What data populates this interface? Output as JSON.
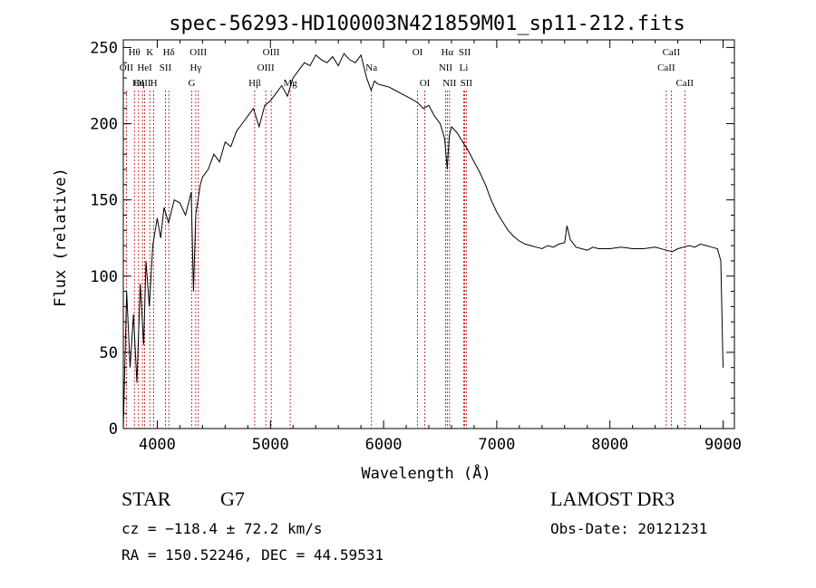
{
  "chart_data": {
    "type": "line",
    "title": "spec-56293-HD100003N421859M01_sp11-212.fits",
    "xlabel": "Wavelength (Å)",
    "ylabel": "Flux (relative)",
    "xlim": [
      3700,
      9100
    ],
    "ylim": [
      0,
      255
    ],
    "xticks": [
      4000,
      5000,
      6000,
      7000,
      8000,
      9000
    ],
    "yticks": [
      0,
      50,
      100,
      150,
      200,
      250
    ],
    "series": [
      {
        "name": "flux",
        "x": [
          3700,
          3730,
          3760,
          3790,
          3820,
          3850,
          3880,
          3900,
          3930,
          3960,
          4000,
          4030,
          4060,
          4100,
          4150,
          4200,
          4250,
          4300,
          4320,
          4340,
          4380,
          4400,
          4450,
          4500,
          4550,
          4600,
          4650,
          4700,
          4750,
          4800,
          4850,
          4900,
          4950,
          5000,
          5050,
          5100,
          5150,
          5200,
          5250,
          5300,
          5350,
          5400,
          5450,
          5500,
          5550,
          5600,
          5650,
          5700,
          5750,
          5800,
          5850,
          5890,
          5920,
          5950,
          6000,
          6050,
          6100,
          6150,
          6200,
          6250,
          6300,
          6350,
          6400,
          6450,
          6500,
          6540,
          6563,
          6580,
          6600,
          6650,
          6700,
          6750,
          6800,
          6850,
          6900,
          6950,
          7000,
          7050,
          7100,
          7150,
          7200,
          7250,
          7300,
          7350,
          7400,
          7450,
          7500,
          7550,
          7600,
          7620,
          7650,
          7700,
          7750,
          7800,
          7850,
          7900,
          7950,
          8000,
          8100,
          8200,
          8300,
          8400,
          8500,
          8550,
          8600,
          8650,
          8700,
          8750,
          8800,
          8850,
          8900,
          8950,
          8980,
          9000
        ],
        "values": [
          0,
          90,
          40,
          75,
          30,
          95,
          55,
          110,
          80,
          120,
          138,
          125,
          145,
          135,
          150,
          148,
          140,
          155,
          90,
          140,
          160,
          165,
          170,
          180,
          175,
          188,
          185,
          195,
          200,
          205,
          210,
          198,
          212,
          215,
          220,
          225,
          218,
          230,
          235,
          240,
          238,
          245,
          242,
          240,
          244,
          238,
          246,
          242,
          240,
          245,
          230,
          222,
          228,
          226,
          225,
          224,
          222,
          220,
          218,
          216,
          214,
          210,
          212,
          205,
          200,
          190,
          170,
          192,
          198,
          194,
          188,
          182,
          175,
          168,
          160,
          150,
          142,
          136,
          130,
          126,
          123,
          121,
          120,
          119,
          118,
          120,
          119,
          121,
          122,
          133,
          124,
          119,
          118,
          117,
          119,
          118,
          118,
          118,
          119,
          118,
          118,
          119,
          117,
          116,
          118,
          119,
          120,
          119,
          121,
          120,
          119,
          118,
          110,
          40
        ]
      }
    ],
    "lines": [
      {
        "label": "Hθ",
        "x": 3798,
        "row": 1
      },
      {
        "label": "OII",
        "x": 3727,
        "row": 2
      },
      {
        "label": "OIII",
        "x": 3869,
        "row": 3
      },
      {
        "label": "K",
        "x": 3934,
        "row": 1
      },
      {
        "label": "HeI",
        "x": 3889,
        "row": 2
      },
      {
        "label": "Hη",
        "x": 3835,
        "row": 3
      },
      {
        "label": "SII",
        "x": 4072,
        "row": 2
      },
      {
        "label": "H",
        "x": 3969,
        "row": 3
      },
      {
        "label": "Hδ",
        "x": 4102,
        "row": 1
      },
      {
        "label": "OIII",
        "x": 4363,
        "row": 1
      },
      {
        "label": "Hγ",
        "x": 4340,
        "row": 2
      },
      {
        "label": "G",
        "x": 4305,
        "row": 3
      },
      {
        "label": "OIII",
        "x": 5007,
        "row": 1
      },
      {
        "label": "OIII",
        "x": 4959,
        "row": 2
      },
      {
        "label": "Hβ",
        "x": 4861,
        "row": 3
      },
      {
        "label": "Mg",
        "x": 5175,
        "row": 3
      },
      {
        "label": "Na",
        "x": 5893,
        "row": 2
      },
      {
        "label": "OI",
        "x": 6300,
        "row": 1
      },
      {
        "label": "OI",
        "x": 6364,
        "row": 3
      },
      {
        "label": "Hα",
        "x": 6563,
        "row": 1
      },
      {
        "label": "NII",
        "x": 6548,
        "row": 2
      },
      {
        "label": "NII",
        "x": 6583,
        "row": 3
      },
      {
        "label": "SII",
        "x": 6717,
        "row": 1
      },
      {
        "label": "Li",
        "x": 6708,
        "row": 2
      },
      {
        "label": "SII",
        "x": 6731,
        "row": 3
      },
      {
        "label": "CaII",
        "x": 8542,
        "row": 1
      },
      {
        "label": "CaII",
        "x": 8498,
        "row": 2
      },
      {
        "label": "CaII",
        "x": 8662,
        "row": 3
      }
    ]
  },
  "info": {
    "class": "STAR",
    "subclass": "G7",
    "survey": "LAMOST DR3",
    "redshift": "cz = −118.4 ± 72.2 km/s",
    "obs_date": "Obs-Date: 20121231",
    "coords": "RA = 150.52246, DEC =  44.59531"
  }
}
